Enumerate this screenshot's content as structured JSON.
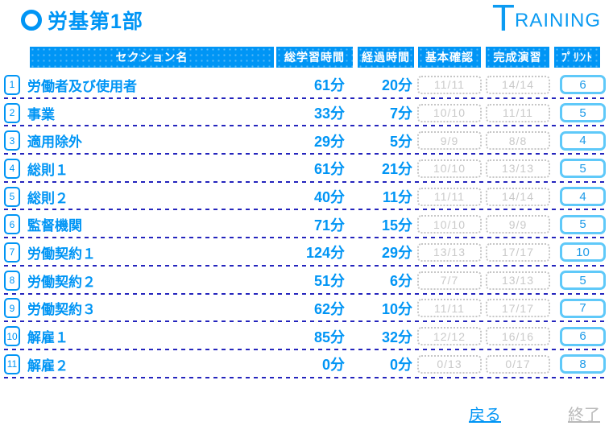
{
  "header": {
    "title": "労基第1部",
    "logo_t": "T",
    "logo_rest": "RAINING"
  },
  "table": {
    "columns": [
      "セクション名",
      "総学習時間",
      "経過時間",
      "基本確認",
      "完成演習",
      "ﾌﾟﾘﾝﾄ"
    ],
    "rows": [
      {
        "num": "1",
        "name": "労働者及び使用者",
        "total": "61分",
        "elapsed": "20分",
        "basic": "11/11",
        "complete": "14/14",
        "print": "6"
      },
      {
        "num": "2",
        "name": "事業",
        "total": "33分",
        "elapsed": "7分",
        "basic": "10/10",
        "complete": "11/11",
        "print": "5"
      },
      {
        "num": "3",
        "name": "適用除外",
        "total": "29分",
        "elapsed": "5分",
        "basic": "9/9",
        "complete": "8/8",
        "print": "4"
      },
      {
        "num": "4",
        "name": "総則１",
        "total": "61分",
        "elapsed": "21分",
        "basic": "10/10",
        "complete": "13/13",
        "print": "5"
      },
      {
        "num": "5",
        "name": "総則２",
        "total": "40分",
        "elapsed": "11分",
        "basic": "11/11",
        "complete": "14/14",
        "print": "4"
      },
      {
        "num": "6",
        "name": "監督機関",
        "total": "71分",
        "elapsed": "15分",
        "basic": "10/10",
        "complete": "9/9",
        "print": "5"
      },
      {
        "num": "7",
        "name": "労働契約１",
        "total": "124分",
        "elapsed": "29分",
        "basic": "13/13",
        "complete": "17/17",
        "print": "10"
      },
      {
        "num": "8",
        "name": "労働契約２",
        "total": "51分",
        "elapsed": "6分",
        "basic": "7/7",
        "complete": "13/13",
        "print": "5"
      },
      {
        "num": "9",
        "name": "労働契約３",
        "total": "62分",
        "elapsed": "10分",
        "basic": "11/11",
        "complete": "17/17",
        "print": "7"
      },
      {
        "num": "10",
        "name": "解雇１",
        "total": "85分",
        "elapsed": "32分",
        "basic": "12/12",
        "complete": "16/16",
        "print": "6"
      },
      {
        "num": "11",
        "name": "解雇２",
        "total": "0分",
        "elapsed": "0分",
        "basic": "0/13",
        "complete": "0/17",
        "print": "8"
      }
    ]
  },
  "footer": {
    "back_label": "戻る",
    "exit_label": "終了"
  },
  "colors": {
    "primary_blue": "#0095F5",
    "print_border_blue": "#5FC9F9",
    "separator_navy": "#2525BD",
    "disabled_gray": "#C9C9C9"
  }
}
